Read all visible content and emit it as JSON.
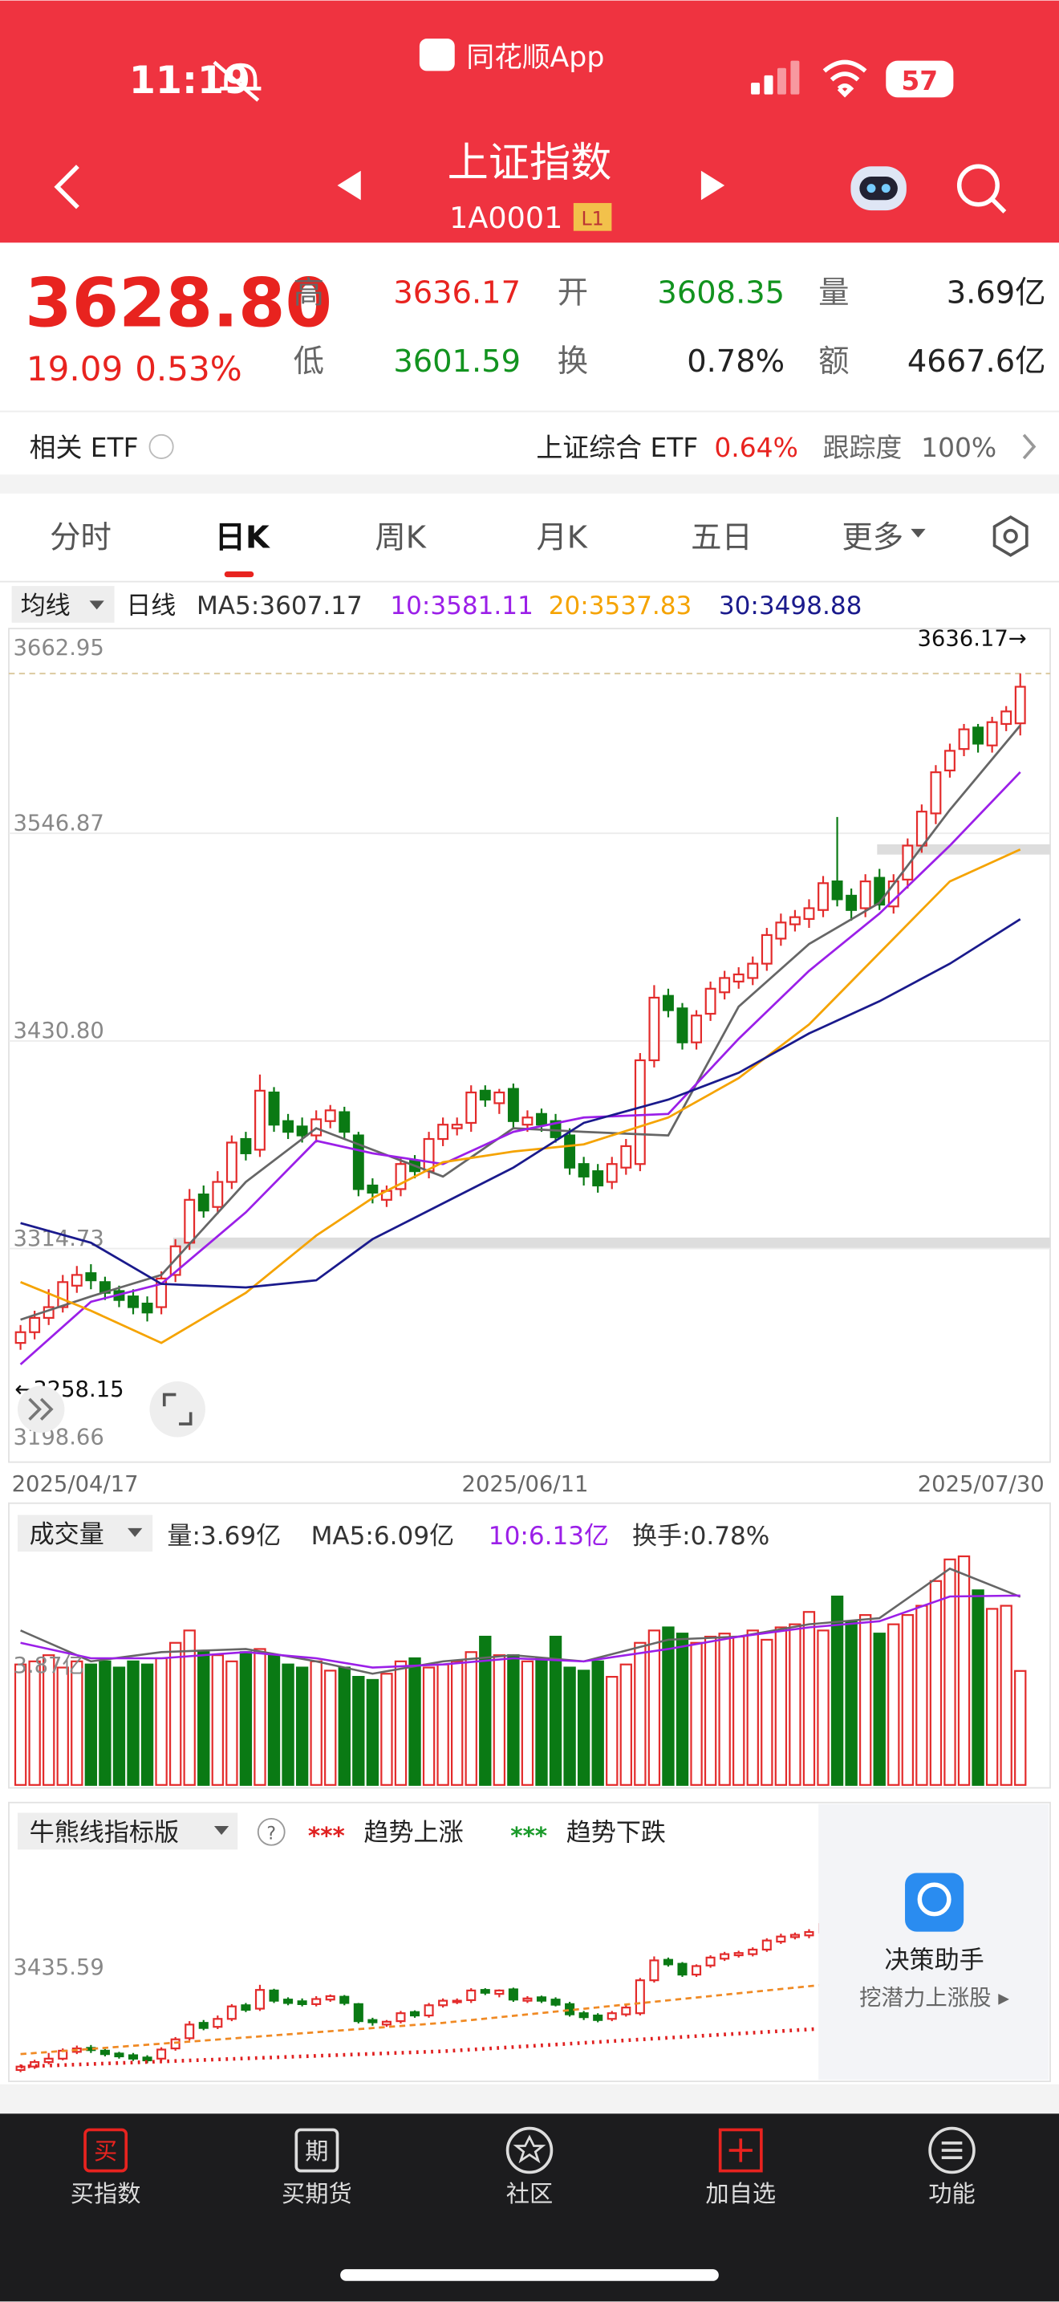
{
  "status_bar": {
    "time": "11:19",
    "app": "同花顺App",
    "battery": "57"
  },
  "header": {
    "title": "上证指数",
    "code": "1A0001",
    "badge": "L1"
  },
  "quote": {
    "price": "3628.80",
    "change": "19.09",
    "change_pct": "0.53%",
    "stats": [
      {
        "label": "高",
        "value": "3636.17"
      },
      {
        "label": "开",
        "value": "3608.35"
      },
      {
        "label": "量",
        "value": "3.69亿"
      },
      {
        "label": "低",
        "value": "3601.59"
      },
      {
        "label": "换",
        "value": "0.78%"
      },
      {
        "label": "额",
        "value": "4667.6亿"
      }
    ]
  },
  "etf": {
    "label": "相关 ETF",
    "name": "上证综合 ETF",
    "pct": "0.64%",
    "track_label": "跟踪度",
    "track_value": "100%"
  },
  "tabs": [
    "分时",
    "日K",
    "周K",
    "月K",
    "五日",
    "更多"
  ],
  "kline": {
    "selector": "均线",
    "period": "日线",
    "ma_labels": [
      {
        "text": "MA5:3607.17",
        "color": "#333333"
      },
      {
        "text": "10:3581.11",
        "color": "#9b1fe8"
      },
      {
        "text": "20:3537.83",
        "color": "#f5a300"
      },
      {
        "text": "30:3498.88",
        "color": "#1a1a8c"
      }
    ],
    "up_color": "#e32b2b",
    "down_color": "#0a7a14",
    "ylim": [
      3198.66,
      3662.95
    ],
    "yticks": [
      {
        "value": 3662.95,
        "label": "3662.95"
      },
      {
        "value": 3546.87,
        "label": "3546.87"
      },
      {
        "value": 3430.8,
        "label": "3430.80"
      },
      {
        "value": 3314.73,
        "label": "3314.73"
      },
      {
        "value": 3198.66,
        "label": "3198.66"
      }
    ],
    "high_marker": {
      "value": 3636.17,
      "label": "3636.17→"
    },
    "low_marker": {
      "value": 3258.15,
      "label": "←3258.15"
    },
    "dates": [
      "2025/04/17",
      "2025/06/11",
      "2025/07/30"
    ],
    "open": [
      3262,
      3268,
      3276,
      3282,
      3294,
      3301,
      3296,
      3291,
      3288,
      3284,
      3282,
      3300,
      3318,
      3345,
      3338,
      3352,
      3376,
      3370,
      3402,
      3386,
      3383,
      3378,
      3386,
      3391,
      3378,
      3350,
      3342,
      3348,
      3364,
      3358,
      3376,
      3382,
      3385,
      3403,
      3396,
      3404,
      3384,
      3390,
      3386,
      3378,
      3362,
      3358,
      3352,
      3360,
      3362,
      3420,
      3456,
      3449,
      3430,
      3446,
      3458,
      3464,
      3466,
      3474,
      3488,
      3496,
      3499,
      3504,
      3520,
      3512,
      3505,
      3522,
      3506,
      3521,
      3540,
      3558,
      3582,
      3594,
      3606,
      3596,
      3608,
      3608.35
    ],
    "close": [
      3268,
      3276,
      3282,
      3296,
      3300,
      3297,
      3290,
      3286,
      3282,
      3279,
      3298,
      3316,
      3342,
      3336,
      3352,
      3374,
      3368,
      3403,
      3384,
      3380,
      3378,
      3387,
      3392,
      3380,
      3348,
      3346,
      3347,
      3362,
      3358,
      3376,
      3384,
      3384,
      3402,
      3398,
      3402,
      3386,
      3388,
      3384,
      3377,
      3360,
      3355,
      3350,
      3362,
      3372,
      3420,
      3455,
      3448,
      3430,
      3445,
      3460,
      3466,
      3468,
      3474,
      3490,
      3497,
      3500,
      3505,
      3519,
      3510,
      3504,
      3520,
      3507,
      3520,
      3540,
      3559,
      3581,
      3593,
      3605,
      3597,
      3609,
      3615,
      3628.8
    ],
    "high": [
      3272,
      3280,
      3292,
      3300,
      3305,
      3306,
      3299,
      3294,
      3292,
      3288,
      3302,
      3320,
      3348,
      3350,
      3358,
      3378,
      3380,
      3412,
      3405,
      3390,
      3388,
      3392,
      3395,
      3394,
      3380,
      3354,
      3350,
      3366,
      3367,
      3380,
      3388,
      3388,
      3406,
      3406,
      3404,
      3407,
      3392,
      3393,
      3390,
      3382,
      3366,
      3362,
      3366,
      3376,
      3424,
      3462,
      3460,
      3452,
      3448,
      3464,
      3470,
      3472,
      3478,
      3494,
      3502,
      3504,
      3510,
      3523,
      3556,
      3516,
      3524,
      3527,
      3524,
      3544,
      3563,
      3585,
      3597,
      3608,
      3608,
      3612,
      3618,
      3636.17
    ],
    "low": [
      3258.15,
      3264,
      3272,
      3279,
      3290,
      3292,
      3286,
      3282,
      3278,
      3274,
      3278,
      3296,
      3314,
      3332,
      3334,
      3348,
      3364,
      3366,
      3380,
      3376,
      3374,
      3374,
      3382,
      3376,
      3344,
      3340,
      3338,
      3344,
      3354,
      3354,
      3372,
      3378,
      3380,
      3394,
      3390,
      3382,
      3380,
      3380,
      3374,
      3356,
      3350,
      3346,
      3348,
      3356,
      3358,
      3416,
      3444,
      3426,
      3426,
      3442,
      3454,
      3460,
      3462,
      3470,
      3484,
      3492,
      3494,
      3500,
      3506,
      3498,
      3500,
      3504,
      3502,
      3516,
      3536,
      3552,
      3578,
      3590,
      3592,
      3592,
      3604,
      3601.59
    ],
    "ma_index": [
      0,
      5,
      10,
      16,
      21,
      25,
      30,
      35,
      40,
      46,
      51,
      56,
      61,
      66,
      71
    ],
    "ma5": [
      3275,
      3288,
      3300,
      3352,
      3382,
      3370,
      3355,
      3382,
      3380,
      3378,
      3450,
      3485,
      3508,
      3560,
      3607.17
    ],
    "ma10": [
      3250,
      3285,
      3295,
      3335,
      3375,
      3368,
      3362,
      3380,
      3388,
      3390,
      3432,
      3470,
      3502,
      3540,
      3581.11
    ],
    "ma20": [
      3296,
      3280,
      3262,
      3290,
      3322,
      3343,
      3363,
      3369,
      3373,
      3388,
      3410,
      3440,
      3480,
      3520,
      3537.83
    ],
    "ma30": [
      3329,
      3318,
      3295,
      3293,
      3297,
      3320,
      3340,
      3360,
      3385,
      3398,
      3413,
      3435,
      3453,
      3474,
      3498.88
    ]
  },
  "volume": {
    "selector": "成交量",
    "labels": [
      {
        "text": "量:3.69亿",
        "color": "#333333"
      },
      {
        "text": "MA5:6.09亿",
        "color": "#333333"
      },
      {
        "text": "10:6.13亿",
        "color": "#9b1fe8"
      },
      {
        "text": "换手:0.78%",
        "color": "#333333"
      }
    ],
    "ylim": [
      0,
      7.6
    ],
    "yticks": [
      {
        "value": 3.87,
        "label": "3.87亿"
      }
    ],
    "values": [
      3.9,
      4.0,
      4.2,
      3.8,
      4.0,
      3.9,
      4.0,
      3.8,
      4.0,
      3.9,
      4.1,
      4.6,
      5.0,
      4.3,
      4.2,
      4.0,
      4.3,
      4.4,
      4.2,
      3.9,
      3.8,
      4.0,
      3.7,
      3.8,
      3.5,
      3.4,
      3.6,
      4.0,
      4.1,
      3.8,
      3.9,
      4.0,
      4.3,
      4.8,
      4.2,
      4.2,
      4.0,
      4.1,
      4.8,
      3.8,
      3.7,
      4.0,
      3.5,
      3.9,
      4.6,
      5.0,
      5.1,
      4.9,
      4.6,
      4.8,
      4.9,
      4.8,
      5.0,
      4.7,
      5.1,
      5.2,
      5.6,
      5.0,
      6.1,
      5.3,
      5.5,
      4.9,
      5.2,
      5.5,
      5.8,
      6.6,
      7.3,
      7.4,
      6.3,
      5.7,
      5.8,
      3.69
    ],
    "ma5": [
      5.0,
      4.0,
      4.3,
      4.4,
      4.0,
      3.6,
      4.0,
      4.2,
      4.0,
      4.7,
      4.8,
      5.2,
      5.4,
      7.0,
      6.09
    ],
    "ma10": [
      4.6,
      4.1,
      4.1,
      4.3,
      4.1,
      3.8,
      3.9,
      4.1,
      4.0,
      4.4,
      4.8,
      5.1,
      5.3,
      6.1,
      6.13
    ]
  },
  "indicator": {
    "selector": "牛熊线指标版",
    "help": "?",
    "legend": [
      {
        "marker": "***",
        "name": "趋势上涨",
        "color": "#e02020"
      },
      {
        "marker": "***",
        "name": "趋势下跌",
        "color": "#1a9a2a"
      }
    ],
    "ylim": [
      3242,
      3720
    ],
    "yticks": [
      3435.59
    ],
    "trend_index": [
      0,
      30,
      57
    ],
    "trend_up": [
      3268,
      3295,
      3335
    ],
    "trend_line": [
      3290,
      3345,
      3412
    ]
  },
  "assistant": {
    "title": "决策助手",
    "subtitle": "挖潜力上涨股 ▸"
  },
  "nav": [
    {
      "label": "买指数",
      "icon": "买"
    },
    {
      "label": "买期货",
      "icon": "期"
    },
    {
      "label": "社区"
    },
    {
      "label": "加自选"
    },
    {
      "label": "功能"
    }
  ]
}
